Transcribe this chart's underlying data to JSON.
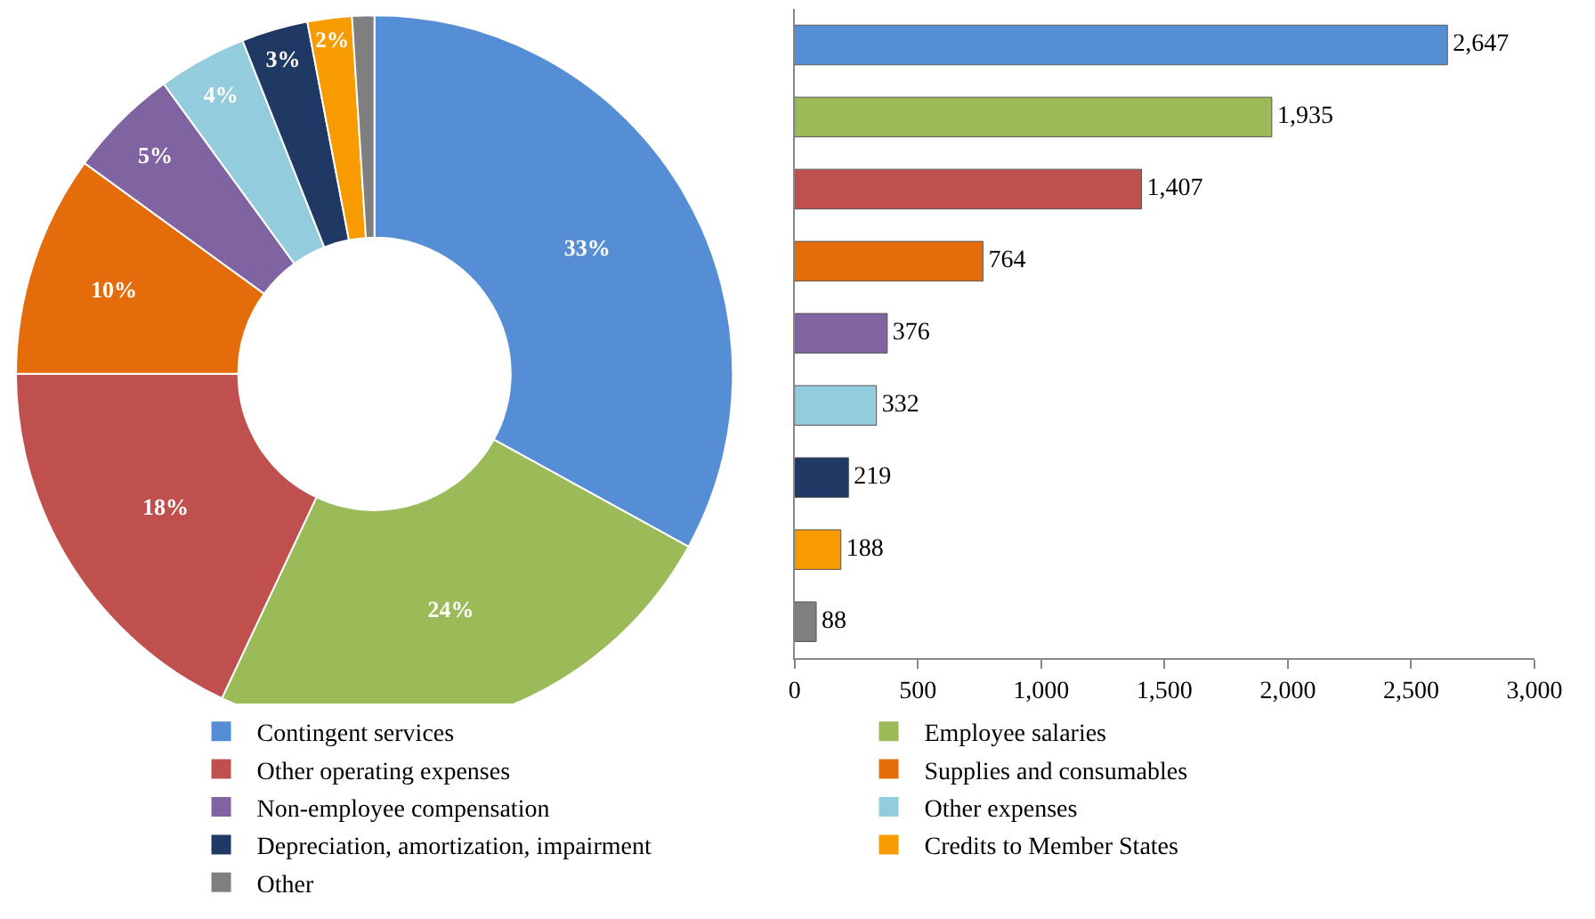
{
  "chart_data": [
    {
      "type": "donut",
      "categories": [
        "Contingent services",
        "Employee salaries",
        "Other operating expenses",
        "Supplies and consumables",
        "Non-employee compensation",
        "Other expenses",
        "Depreciation, amortization, impairment",
        "Credits to Member States",
        "Other"
      ],
      "values": [
        33,
        24,
        18,
        10,
        5,
        4,
        3,
        2,
        1
      ],
      "value_labels": [
        "33%",
        "24%",
        "18%",
        "10%",
        "5%",
        "4%",
        "3%",
        "2%",
        null
      ],
      "colors": [
        "#558ed5",
        "#9bbb59",
        "#c0504d",
        "#e46c0a",
        "#8064a2",
        "#93cddd",
        "#1f3864",
        "#f79b00",
        "#7f7f7f"
      ],
      "legend": "bottom"
    },
    {
      "type": "bar",
      "orientation": "horizontal",
      "categories": [
        null,
        null,
        null,
        null,
        null,
        null,
        null,
        null,
        null
      ],
      "values": [
        2647,
        1935,
        1407,
        764,
        376,
        332,
        219,
        188,
        88
      ],
      "value_labels": [
        "2,647",
        "1,935",
        "1,407",
        "764",
        "376",
        "332",
        "219",
        "188",
        "88"
      ],
      "colors": [
        "#558ed5",
        "#9bbb59",
        "#c0504d",
        "#e46c0a",
        "#8064a2",
        "#93cddd",
        "#1f3864",
        "#f79b00",
        "#7f7f7f"
      ],
      "xlim": [
        0,
        3000
      ],
      "xticks": [
        0,
        500,
        {
          "value": 1000,
          "label": "1,000"
        },
        {
          "value": 1500,
          "label": "1,500"
        },
        {
          "value": 2000,
          "label": "2,000"
        },
        {
          "value": 2500,
          "label": "2,500"
        },
        {
          "value": 3000,
          "label": "3,000"
        }
      ]
    }
  ]
}
